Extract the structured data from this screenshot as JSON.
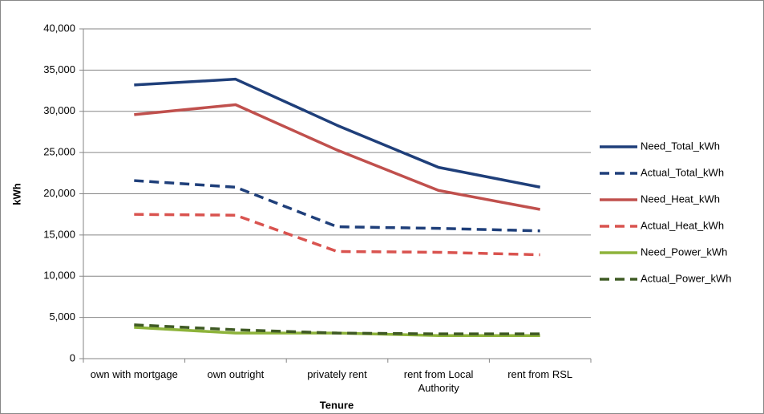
{
  "chart_data": {
    "type": "line",
    "x_label": "Tenure",
    "y_label": "kWh",
    "categories": [
      "own with mortgage",
      "own outright",
      "privately rent",
      "rent from Local Authority",
      "rent from RSL"
    ],
    "series": [
      {
        "name": "Need_Total_kWh",
        "color": "#1f3f7a",
        "dash": false,
        "values": [
          33200,
          33900,
          28300,
          23200,
          20800
        ]
      },
      {
        "name": "Actual_Total_kWh",
        "color": "#1f3f7a",
        "dash": true,
        "values": [
          21600,
          20800,
          16000,
          15800,
          15500
        ]
      },
      {
        "name": "Need_Heat_kWh",
        "color": "#c0504d",
        "dash": false,
        "values": [
          29600,
          30800,
          25300,
          20400,
          18100
        ]
      },
      {
        "name": "Actual_Heat_kWh",
        "color": "#d9534f",
        "dash": true,
        "values": [
          17500,
          17400,
          13000,
          12900,
          12600
        ]
      },
      {
        "name": "Need_Power_kWh",
        "color": "#8db33a",
        "dash": false,
        "values": [
          3800,
          3100,
          3100,
          2800,
          2800
        ]
      },
      {
        "name": "Actual_Power_kWh",
        "color": "#3f5a24",
        "dash": true,
        "values": [
          4100,
          3500,
          3100,
          3000,
          3000
        ]
      }
    ],
    "ylim": [
      0,
      40000
    ],
    "yticks": [
      0,
      {
        "value": 5000,
        "label": "5,000"
      },
      {
        "value": 10000,
        "label": "10,000"
      },
      {
        "value": 15000,
        "label": "15,000"
      },
      {
        "value": 20000,
        "label": "20,000"
      },
      {
        "value": 25000,
        "label": "25,000"
      },
      {
        "value": 30000,
        "label": "30,000"
      },
      {
        "value": 35000,
        "label": "35,000"
      },
      {
        "value": 40000,
        "label": "40,000"
      }
    ],
    "grid": true,
    "legend": "right"
  }
}
